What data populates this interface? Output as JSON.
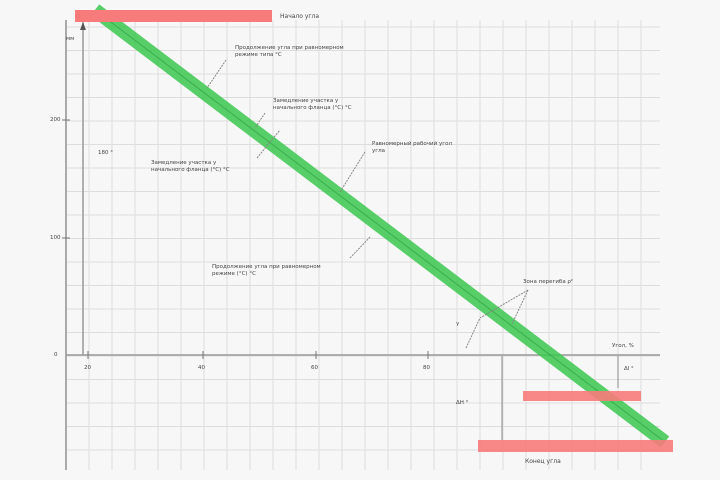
{
  "colors": {
    "band": "#3cc850",
    "bar": "#f77b7b",
    "grid": "#dddddd",
    "axis": "#999999"
  },
  "labels": {
    "top_bar": "Начало угла",
    "bottom_bar": "Конец угла",
    "x_axis": "Угол, %",
    "y_axis": "мм",
    "left_value": "180 °",
    "delta_small": "Δl °",
    "delta_large": "ΔH °",
    "gamma": "γ",
    "zone": "Зона перегиба ρ²"
  },
  "annotations": [
    {
      "line1": "Продолжение угла при равномерном",
      "line2": "режиме типа °C"
    },
    {
      "line1": "Замедление участка у",
      "line2": "начального фланца (°C) °C"
    },
    {
      "line1": "Замедление участка у",
      "line2": "начального фланца (°C) °C"
    },
    {
      "line1": "Равномерный рабочий угол",
      "line2": "угла"
    },
    {
      "line1": "Продолжение угла при равномерном",
      "line2": "режиме (°C) °C"
    }
  ],
  "x_ticks": [
    "20",
    "40",
    "60",
    "80"
  ],
  "y_ticks": [
    "200",
    "100",
    "0"
  ]
}
